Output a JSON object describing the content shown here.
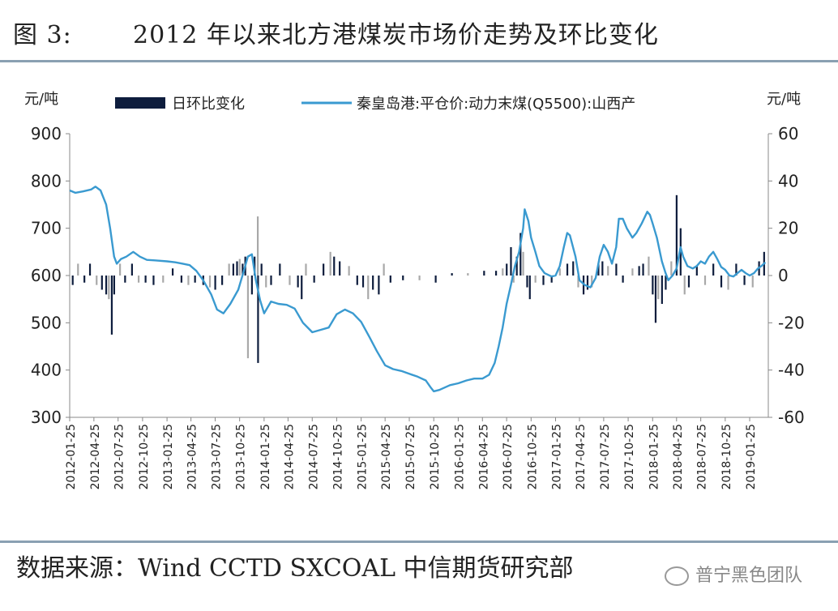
{
  "header": {
    "figure_num": "图 3:",
    "title": "2012 年以来北方港煤炭市场价走势及环比变化"
  },
  "footer": {
    "source": "数据来源：Wind CCTD SXCOAL  中信期货研究部",
    "watermark": "普宁黑色团队"
  },
  "colors": {
    "line": "#3a9ad0",
    "bar_dark": "#0e1d3d",
    "bar_light": "#a9a9a9"
  },
  "chart_data": {
    "type": "line+bar",
    "title": "2012 年以来北方港煤炭市场价走势及环比变化",
    "ylabel_left": "元/吨",
    "ylabel_right": "元/吨",
    "ylim_left": [
      300,
      900
    ],
    "ylim_right": [
      -60,
      60
    ],
    "yticks_left": [
      900,
      800,
      700,
      600,
      500,
      400,
      300
    ],
    "yticks_right": [
      60,
      40,
      20,
      0,
      -20,
      -40,
      -60
    ],
    "xlim": [
      "2012-01-25",
      "2019-04-05"
    ],
    "x_tick_labels": [
      "2012-01-25",
      "2012-04-25",
      "2012-07-25",
      "2012-10-25",
      "2013-01-25",
      "2013-04-25",
      "2013-07-25",
      "2013-10-25",
      "2014-01-25",
      "2014-04-25",
      "2014-07-25",
      "2014-10-25",
      "2015-01-25",
      "2015-04-25",
      "2015-07-25",
      "2015-10-25",
      "2016-01-25",
      "2016-04-25",
      "2016-07-25",
      "2016-10-25",
      "2017-01-25",
      "2017-04-25",
      "2017-07-25",
      "2017-10-25",
      "2018-01-25",
      "2018-04-25",
      "2018-07-25",
      "2018-10-25",
      "2019-01-25"
    ],
    "legend_position": "top",
    "grid": false,
    "series": [
      {
        "name": "日环比变化",
        "type": "bar",
        "axis": "right",
        "points": [
          [
            "2012-02-05",
            -4
          ],
          [
            "2012-02-25",
            5
          ],
          [
            "2012-03-20",
            -3
          ],
          [
            "2012-04-10",
            5
          ],
          [
            "2012-05-05",
            -4
          ],
          [
            "2012-05-25",
            -6
          ],
          [
            "2012-06-10",
            -8
          ],
          [
            "2012-06-20",
            -10
          ],
          [
            "2012-07-01",
            -25
          ],
          [
            "2012-07-10",
            -8
          ],
          [
            "2012-08-01",
            5
          ],
          [
            "2012-08-20",
            -3
          ],
          [
            "2012-09-15",
            5
          ],
          [
            "2012-10-10",
            -3
          ],
          [
            "2012-11-05",
            -3
          ],
          [
            "2012-12-05",
            -4
          ],
          [
            "2013-01-10",
            -3
          ],
          [
            "2013-02-15",
            3
          ],
          [
            "2013-03-20",
            -3
          ],
          [
            "2013-04-15",
            -4
          ],
          [
            "2013-05-10",
            -3
          ],
          [
            "2013-06-10",
            -4
          ],
          [
            "2013-07-05",
            -5
          ],
          [
            "2013-07-25",
            -6
          ],
          [
            "2013-08-20",
            -4
          ],
          [
            "2013-09-15",
            5
          ],
          [
            "2013-10-01",
            5
          ],
          [
            "2013-10-15",
            6
          ],
          [
            "2013-10-25",
            7
          ],
          [
            "2013-11-05",
            5
          ],
          [
            "2013-11-15",
            8
          ],
          [
            "2013-11-25",
            -35
          ],
          [
            "2013-12-10",
            -8
          ],
          [
            "2013-12-20",
            8
          ],
          [
            "2014-01-01",
            25
          ],
          [
            "2014-01-02",
            -37
          ],
          [
            "2014-01-15",
            5
          ],
          [
            "2014-02-01",
            -5
          ],
          [
            "2014-02-20",
            -4
          ],
          [
            "2014-03-25",
            5
          ],
          [
            "2014-05-01",
            -4
          ],
          [
            "2014-06-01",
            -5
          ],
          [
            "2014-06-15",
            -10
          ],
          [
            "2014-07-01",
            5
          ],
          [
            "2014-08-01",
            -3
          ],
          [
            "2014-09-05",
            5
          ],
          [
            "2014-10-01",
            10
          ],
          [
            "2014-10-15",
            8
          ],
          [
            "2014-11-05",
            6
          ],
          [
            "2014-12-10",
            4
          ],
          [
            "2015-01-10",
            -4
          ],
          [
            "2015-02-01",
            -5
          ],
          [
            "2015-02-20",
            -10
          ],
          [
            "2015-03-10",
            -6
          ],
          [
            "2015-04-01",
            -8
          ],
          [
            "2015-04-20",
            5
          ],
          [
            "2015-05-15",
            -3
          ],
          [
            "2015-07-01",
            -2
          ],
          [
            "2015-09-01",
            -2
          ],
          [
            "2015-11-01",
            -3
          ],
          [
            "2016-01-01",
            1
          ],
          [
            "2016-03-01",
            1
          ],
          [
            "2016-05-01",
            2
          ],
          [
            "2016-06-15",
            2
          ],
          [
            "2016-07-10",
            3
          ],
          [
            "2016-07-25",
            5
          ],
          [
            "2016-08-10",
            12
          ],
          [
            "2016-08-20",
            -3
          ],
          [
            "2016-09-01",
            8
          ],
          [
            "2016-09-15",
            18
          ],
          [
            "2016-09-25",
            10
          ],
          [
            "2016-10-10",
            -5
          ],
          [
            "2016-10-20",
            -10
          ],
          [
            "2016-11-10",
            -3
          ],
          [
            "2016-12-10",
            -4
          ],
          [
            "2017-01-10",
            -3
          ],
          [
            "2017-02-10",
            3
          ],
          [
            "2017-03-10",
            5
          ],
          [
            "2017-04-01",
            6
          ],
          [
            "2017-04-20",
            -5
          ],
          [
            "2017-05-10",
            -8
          ],
          [
            "2017-05-25",
            -6
          ],
          [
            "2017-06-10",
            -5
          ],
          [
            "2017-07-05",
            5
          ],
          [
            "2017-07-20",
            6
          ],
          [
            "2017-08-10",
            4
          ],
          [
            "2017-09-10",
            5
          ],
          [
            "2017-10-05",
            -3
          ],
          [
            "2017-11-10",
            3
          ],
          [
            "2017-12-05",
            4
          ],
          [
            "2017-12-20",
            5
          ],
          [
            "2018-01-10",
            8
          ],
          [
            "2018-01-25",
            -8
          ],
          [
            "2018-02-05",
            -20
          ],
          [
            "2018-02-15",
            -10
          ],
          [
            "2018-03-01",
            -12
          ],
          [
            "2018-03-15",
            -6
          ],
          [
            "2018-04-05",
            6
          ],
          [
            "2018-04-25",
            34
          ],
          [
            "2018-05-10",
            20
          ],
          [
            "2018-05-25",
            -8
          ],
          [
            "2018-06-10",
            -5
          ],
          [
            "2018-07-10",
            4
          ],
          [
            "2018-08-10",
            -4
          ],
          [
            "2018-09-10",
            5
          ],
          [
            "2018-10-10",
            -5
          ],
          [
            "2018-11-05",
            -6
          ],
          [
            "2018-12-05",
            5
          ],
          [
            "2019-01-05",
            -4
          ],
          [
            "2019-02-05",
            -5
          ],
          [
            "2019-03-01",
            6
          ],
          [
            "2019-03-20",
            10
          ]
        ]
      },
      {
        "name": "秦皇岛港:平仓价:动力末煤(Q5500):山西产",
        "type": "line",
        "axis": "left",
        "points": [
          [
            "2012-01-25",
            780
          ],
          [
            "2012-02-15",
            775
          ],
          [
            "2012-03-15",
            778
          ],
          [
            "2012-04-15",
            782
          ],
          [
            "2012-05-01",
            788
          ],
          [
            "2012-05-20",
            780
          ],
          [
            "2012-06-10",
            750
          ],
          [
            "2012-06-25",
            700
          ],
          [
            "2012-07-10",
            640
          ],
          [
            "2012-07-20",
            625
          ],
          [
            "2012-08-05",
            635
          ],
          [
            "2012-08-25",
            640
          ],
          [
            "2012-09-20",
            650
          ],
          [
            "2012-10-15",
            640
          ],
          [
            "2012-11-10",
            633
          ],
          [
            "2012-12-10",
            632
          ],
          [
            "2013-01-25",
            630
          ],
          [
            "2013-02-25",
            628
          ],
          [
            "2013-03-25",
            625
          ],
          [
            "2013-04-20",
            622
          ],
          [
            "2013-05-15",
            610
          ],
          [
            "2013-06-10",
            590
          ],
          [
            "2013-07-10",
            560
          ],
          [
            "2013-08-01",
            528
          ],
          [
            "2013-08-25",
            520
          ],
          [
            "2013-09-20",
            540
          ],
          [
            "2013-10-20",
            570
          ],
          [
            "2013-11-10",
            610
          ],
          [
            "2013-11-25",
            640
          ],
          [
            "2013-12-10",
            645
          ],
          [
            "2013-12-25",
            590
          ],
          [
            "2014-01-10",
            548
          ],
          [
            "2014-01-25",
            520
          ],
          [
            "2014-02-20",
            545
          ],
          [
            "2014-03-20",
            540
          ],
          [
            "2014-04-20",
            538
          ],
          [
            "2014-05-20",
            530
          ],
          [
            "2014-06-20",
            500
          ],
          [
            "2014-07-25",
            480
          ],
          [
            "2014-08-25",
            485
          ],
          [
            "2014-09-25",
            490
          ],
          [
            "2014-10-25",
            518
          ],
          [
            "2014-11-25",
            528
          ],
          [
            "2014-12-25",
            520
          ],
          [
            "2015-01-25",
            502
          ],
          [
            "2015-02-25",
            470
          ],
          [
            "2015-03-25",
            440
          ],
          [
            "2015-04-25",
            410
          ],
          [
            "2015-05-25",
            402
          ],
          [
            "2015-06-25",
            398
          ],
          [
            "2015-07-25",
            392
          ],
          [
            "2015-08-25",
            386
          ],
          [
            "2015-09-25",
            378
          ],
          [
            "2015-10-15",
            362
          ],
          [
            "2015-10-25",
            355
          ],
          [
            "2015-11-15",
            358
          ],
          [
            "2015-12-25",
            368
          ],
          [
            "2016-01-25",
            372
          ],
          [
            "2016-02-25",
            378
          ],
          [
            "2016-03-25",
            382
          ],
          [
            "2016-04-25",
            382
          ],
          [
            "2016-05-20",
            390
          ],
          [
            "2016-06-10",
            415
          ],
          [
            "2016-06-25",
            450
          ],
          [
            "2016-07-10",
            490
          ],
          [
            "2016-07-25",
            540
          ],
          [
            "2016-08-10",
            580
          ],
          [
            "2016-08-25",
            620
          ],
          [
            "2016-09-10",
            650
          ],
          [
            "2016-09-25",
            700
          ],
          [
            "2016-10-01",
            740
          ],
          [
            "2016-10-15",
            715
          ],
          [
            "2016-10-25",
            680
          ],
          [
            "2016-11-10",
            650
          ],
          [
            "2016-11-25",
            620
          ],
          [
            "2016-12-15",
            605
          ],
          [
            "2017-01-10",
            598
          ],
          [
            "2017-01-25",
            600
          ],
          [
            "2017-02-10",
            620
          ],
          [
            "2017-02-25",
            660
          ],
          [
            "2017-03-10",
            690
          ],
          [
            "2017-03-20",
            685
          ],
          [
            "2017-04-10",
            640
          ],
          [
            "2017-04-25",
            590
          ],
          [
            "2017-05-15",
            580
          ],
          [
            "2017-06-05",
            575
          ],
          [
            "2017-06-25",
            595
          ],
          [
            "2017-07-10",
            640
          ],
          [
            "2017-07-25",
            665
          ],
          [
            "2017-08-10",
            650
          ],
          [
            "2017-08-25",
            625
          ],
          [
            "2017-09-10",
            660
          ],
          [
            "2017-09-20",
            720
          ],
          [
            "2017-10-05",
            720
          ],
          [
            "2017-10-20",
            700
          ],
          [
            "2017-11-10",
            680
          ],
          [
            "2017-11-25",
            690
          ],
          [
            "2017-12-15",
            710
          ],
          [
            "2018-01-05",
            735
          ],
          [
            "2018-01-15",
            728
          ],
          [
            "2018-01-25",
            710
          ],
          [
            "2018-02-10",
            680
          ],
          [
            "2018-03-01",
            630
          ],
          [
            "2018-03-15",
            605
          ],
          [
            "2018-03-25",
            590
          ],
          [
            "2018-04-10",
            600
          ],
          [
            "2018-04-25",
            615
          ],
          [
            "2018-05-10",
            660
          ],
          [
            "2018-05-20",
            640
          ],
          [
            "2018-06-05",
            620
          ],
          [
            "2018-06-25",
            615
          ],
          [
            "2018-07-10",
            620
          ],
          [
            "2018-07-25",
            630
          ],
          [
            "2018-08-10",
            625
          ],
          [
            "2018-08-25",
            640
          ],
          [
            "2018-09-10",
            650
          ],
          [
            "2018-09-25",
            635
          ],
          [
            "2018-10-10",
            618
          ],
          [
            "2018-10-25",
            612
          ],
          [
            "2018-11-10",
            600
          ],
          [
            "2018-11-25",
            598
          ],
          [
            "2018-12-10",
            605
          ],
          [
            "2018-12-25",
            612
          ],
          [
            "2019-01-10",
            605
          ],
          [
            "2019-01-25",
            600
          ],
          [
            "2019-02-10",
            605
          ],
          [
            "2019-02-25",
            615
          ],
          [
            "2019-03-10",
            620
          ],
          [
            "2019-03-25",
            628
          ]
        ]
      }
    ]
  }
}
